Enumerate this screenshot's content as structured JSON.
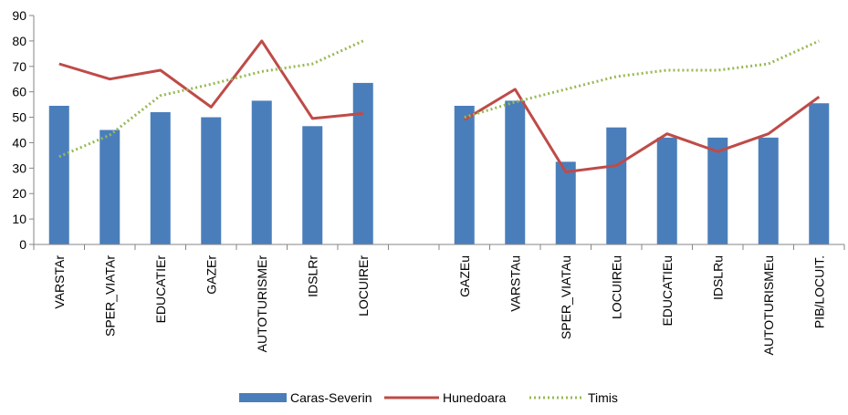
{
  "chart_data": {
    "type": "bar",
    "categories": [
      "VARSTAr",
      "SPER_VIATAr",
      "EDUCATIEr",
      "GAZEr",
      "AUTOTURISMEr",
      "IDSLRr",
      "LOCUIREr",
      "",
      "GAZEu",
      "VARSTAu",
      "SPER_VIATAu",
      "LOCUIREu",
      "EDUCATIEu",
      "IDSLRu",
      "AUTOTURISMEu",
      "PIB/LOCUIT."
    ],
    "series": [
      {
        "name": "Caras-Severin",
        "kind": "bar",
        "color": "#4a7ebb",
        "values": [
          54.5,
          45,
          52,
          50,
          56.5,
          46.5,
          63.5,
          null,
          54.5,
          56.5,
          32.5,
          46,
          42,
          42,
          42,
          55.5
        ]
      },
      {
        "name": "Hunedoara",
        "kind": "line",
        "color": "#be4b48",
        "values": [
          71,
          65,
          68.5,
          54,
          80,
          49.5,
          51.5,
          null,
          49,
          61,
          28.5,
          31,
          43.5,
          36.5,
          43.5,
          58
        ]
      },
      {
        "name": "Timis",
        "kind": "dotted-line",
        "color": "#98b954",
        "values": [
          34.5,
          43,
          58.5,
          63,
          68,
          71,
          80,
          null,
          50,
          56,
          61,
          66,
          68.5,
          68.5,
          71,
          80
        ]
      }
    ],
    "ylim": [
      0,
      90
    ],
    "yticks": [
      "0",
      "10",
      "20",
      "30",
      "40",
      "50",
      "60",
      "70",
      "80",
      "90"
    ],
    "grid": false,
    "legend_position": "bottom"
  }
}
